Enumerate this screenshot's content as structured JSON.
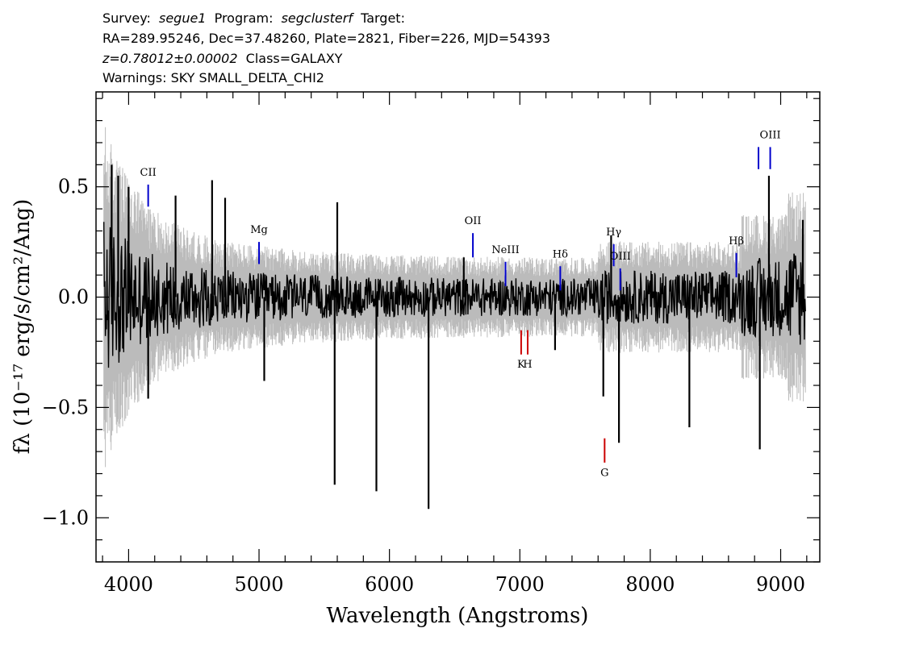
{
  "header": {
    "line1": {
      "survey_label": "Survey:",
      "survey": "segue1",
      "program_label": "Program:",
      "program": "segclusterf",
      "target_label": "Target:"
    },
    "line2": "RA=289.95246, Dec=37.48260, Plate=2821, Fiber=226, MJD=54393",
    "line3": {
      "z": "z=0.78012±0.00002",
      "class": "Class=GALAXY"
    },
    "line4": "Warnings: SKY SMALL_DELTA_CHI2"
  },
  "chart_data": {
    "type": "line",
    "xlabel": "Wavelength (Angstroms)",
    "ylabel": "fλ (10⁻¹⁷ erg/s/cm²/Ang)",
    "xlim": [
      3750,
      9300
    ],
    "ylim": [
      -1.2,
      0.93
    ],
    "x_ticks": [
      4000,
      5000,
      6000,
      7000,
      8000,
      9000
    ],
    "x_tick_labels": [
      "4000",
      "5000",
      "6000",
      "7000",
      "8000",
      "9000"
    ],
    "y_ticks": [
      0.5,
      0.0,
      -0.5,
      -1.0
    ],
    "y_tick_labels": [
      "0.5",
      "0.0",
      "−0.5",
      "−1.0"
    ],
    "grid": false,
    "flux_range": [
      3810,
      9190
    ],
    "spikes": [
      {
        "x": 3870,
        "y": 0.6
      },
      {
        "x": 3920,
        "y": 0.55
      },
      {
        "x": 4000,
        "y": 0.5
      },
      {
        "x": 4150,
        "y": -0.46
      },
      {
        "x": 4360,
        "y": 0.46
      },
      {
        "x": 4640,
        "y": 0.53
      },
      {
        "x": 4740,
        "y": 0.45
      },
      {
        "x": 5040,
        "y": -0.38
      },
      {
        "x": 5580,
        "y": -0.85
      },
      {
        "x": 5600,
        "y": 0.43
      },
      {
        "x": 5900,
        "y": -0.88
      },
      {
        "x": 6300,
        "y": -0.96
      },
      {
        "x": 6570,
        "y": 0.18
      },
      {
        "x": 7270,
        "y": -0.24
      },
      {
        "x": 7640,
        "y": -0.45
      },
      {
        "x": 7700,
        "y": 0.28
      },
      {
        "x": 7760,
        "y": -0.66
      },
      {
        "x": 8300,
        "y": -0.59
      },
      {
        "x": 8840,
        "y": -0.69
      },
      {
        "x": 8910,
        "y": 0.55
      },
      {
        "x": 9170,
        "y": 0.35
      }
    ],
    "emission_lines": [
      {
        "label": "CII",
        "x": 4150,
        "y_top": 0.51,
        "y_bottom": 0.41,
        "label_y": 0.55,
        "color": "#0000cc"
      },
      {
        "label": "Mg",
        "x": 5000,
        "y_top": 0.25,
        "y_bottom": 0.15,
        "label_y": 0.29,
        "color": "#0000cc"
      },
      {
        "label": "OII",
        "x": 6640,
        "y_top": 0.29,
        "y_bottom": 0.18,
        "label_y": 0.33,
        "color": "#0000cc"
      },
      {
        "label": "NeIII",
        "x": 6890,
        "y_top": 0.16,
        "y_bottom": 0.05,
        "label_y": 0.2,
        "color": "#0000cc"
      },
      {
        "label": "Hδ",
        "x": 7310,
        "y_top": 0.14,
        "y_bottom": 0.03,
        "label_y": 0.18,
        "color": "#0000cc"
      },
      {
        "label": "Hγ",
        "x": 7720,
        "y_top": 0.24,
        "y_bottom": 0.14,
        "label_y": 0.28,
        "color": "#0000cc"
      },
      {
        "label": "OIII",
        "x": 7770,
        "y_top": 0.13,
        "y_bottom": 0.03,
        "label_y": 0.17,
        "color": "#0000cc"
      },
      {
        "label": "Hβ",
        "x": 8660,
        "y_top": 0.2,
        "y_bottom": 0.09,
        "label_y": 0.24,
        "color": "#0000cc"
      },
      {
        "label": "",
        "x": 8830,
        "y_top": 0.68,
        "y_bottom": 0.58,
        "label_y": 0.0,
        "color": "#0000cc"
      },
      {
        "label": "OIII",
        "x": 8920,
        "y_top": 0.68,
        "y_bottom": 0.58,
        "label_y": 0.72,
        "color": "#0000cc"
      }
    ],
    "absorption_lines": [
      {
        "label": "K",
        "x": 7010,
        "y_top": -0.15,
        "y_bottom": -0.26,
        "label_y": -0.32,
        "color": "#cc0000"
      },
      {
        "label": "H",
        "x": 7060,
        "y_top": -0.15,
        "y_bottom": -0.26,
        "label_y": -0.32,
        "color": "#cc0000"
      },
      {
        "label": "G",
        "x": 7650,
        "y_top": -0.64,
        "y_bottom": -0.75,
        "label_y": -0.81,
        "color": "#cc0000"
      }
    ],
    "colors": {
      "flux": "#000000",
      "error": "#bbbbbb"
    }
  }
}
